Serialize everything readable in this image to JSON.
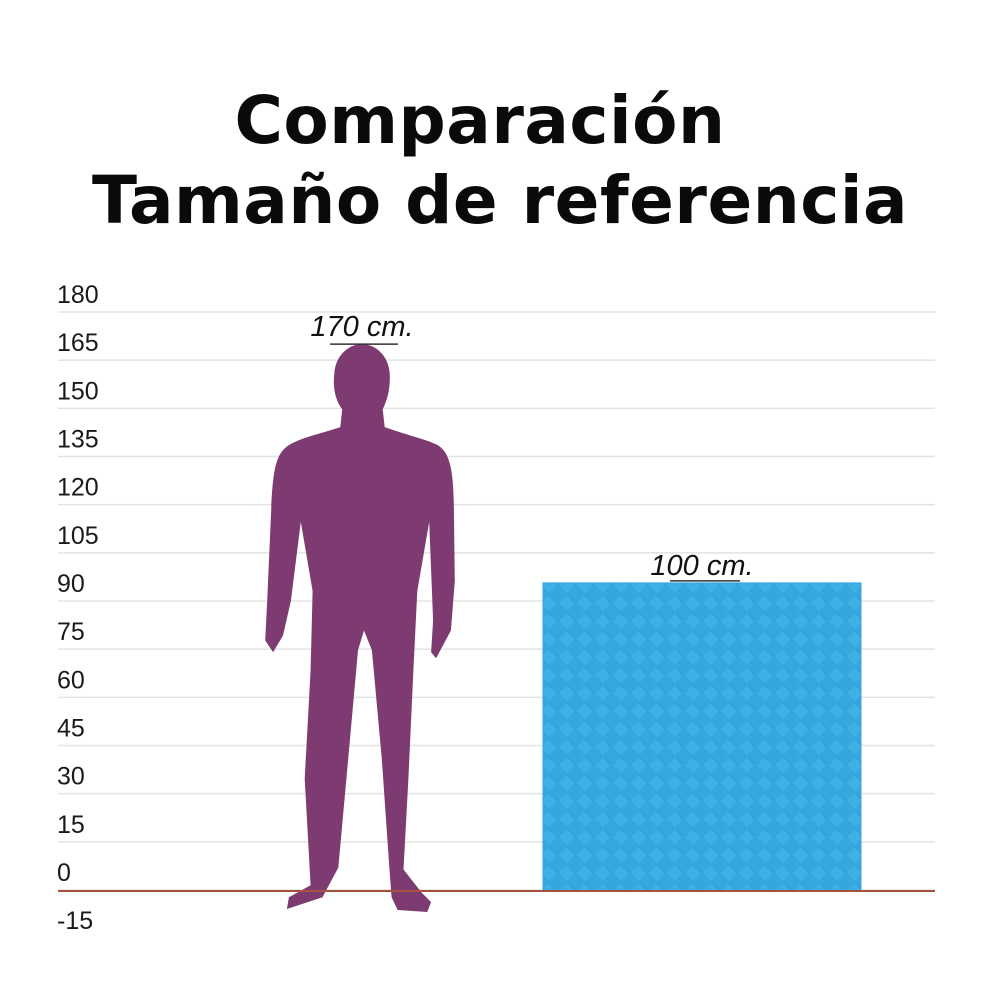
{
  "title": {
    "line1": "Comparación",
    "line2": "Tamaño de referencia"
  },
  "chart_data": {
    "type": "size-comparison",
    "ylim": [
      -15,
      180
    ],
    "y_ticks": [
      180,
      165,
      150,
      135,
      120,
      105,
      90,
      75,
      60,
      45,
      30,
      15,
      0,
      -15
    ],
    "items": [
      {
        "name": "person",
        "height": 170,
        "label": "170 cm.",
        "color": "#7d3b71"
      },
      {
        "name": "mat",
        "height": 100,
        "label": "100 cm.",
        "color": "#35a6de"
      }
    ]
  },
  "colors": {
    "grid": "#e3e3e3",
    "baseline": "#a5533f"
  }
}
